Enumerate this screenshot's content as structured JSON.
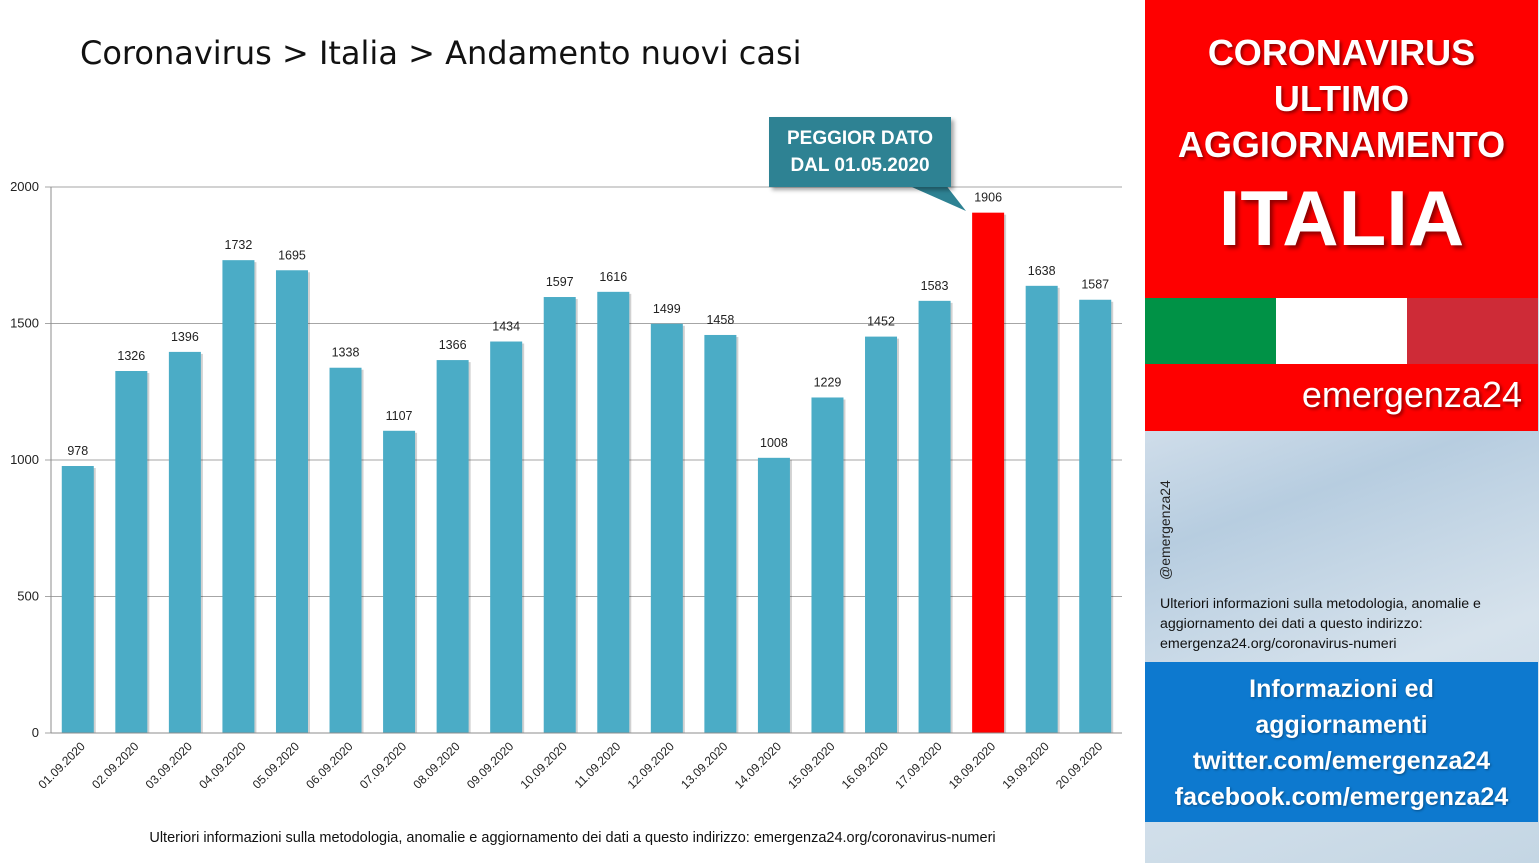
{
  "chart_data": {
    "type": "bar",
    "title": "Coronavirus > Italia > Andamento nuovi casi",
    "categories": [
      "01.09.2020",
      "02.09.2020",
      "03.09.2020",
      "04.09.2020",
      "05.09.2020",
      "06.09.2020",
      "07.09.2020",
      "08.09.2020",
      "09.09.2020",
      "10.09.2020",
      "11.09.2020",
      "12.09.2020",
      "13.09.2020",
      "14.09.2020",
      "15.09.2020",
      "16.09.2020",
      "17.09.2020",
      "18.09.2020",
      "19.09.2020",
      "20.09.2020"
    ],
    "values": [
      978,
      1326,
      1396,
      1732,
      1695,
      1338,
      1107,
      1366,
      1434,
      1597,
      1616,
      1499,
      1458,
      1008,
      1229,
      1452,
      1583,
      1906,
      1638,
      1587
    ],
    "highlight_index": 17,
    "ylim": [
      0,
      2000
    ],
    "yticks": [
      0,
      500,
      1000,
      1500,
      2000
    ],
    "grid": true,
    "colors": {
      "bar": "#4bacc6",
      "highlight": "#ff0000",
      "grid": "#a6a6a6"
    },
    "annotation": {
      "line1": "PEGGIOR DATO",
      "line2": "DAL 01.05.2020"
    }
  },
  "footnote": "Ulteriori informazioni sulla metodologia, anomalie e aggiornamento dei dati a questo indirizzo: emergenza24.org/coronavirus-numeri",
  "sidebar": {
    "header": [
      "CORONAVIRUS",
      "ULTIMO",
      "AGGIORNAMENTO",
      "ITALIA"
    ],
    "flag_colors": [
      "#009246",
      "#ffffff",
      "#ce2b37"
    ],
    "brand": "emergenza24",
    "handle": "@emergenza24",
    "method_text": "Ulteriori informazioni sulla metodologia, anomalie e aggiornamento dei dati a questo indirizzo: emergenza24.org/coronavirus-numeri",
    "info": [
      "Informazioni ed",
      "aggiornamenti",
      "twitter.com/emergenza24",
      "facebook.com/emergenza24"
    ]
  }
}
